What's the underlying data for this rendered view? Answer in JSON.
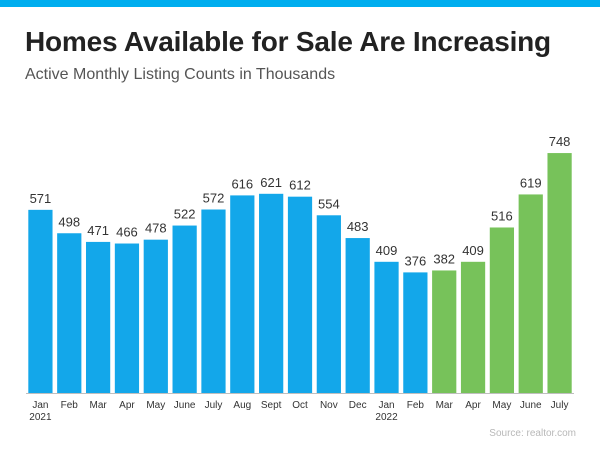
{
  "colors": {
    "accent_bar": "#00aeef",
    "series_2021": "#13a7ea",
    "series_2022": "#77c25a",
    "baseline": "#bfbfbf",
    "label_text": "#333333"
  },
  "header": {
    "title": "Homes Available for Sale Are Increasing",
    "subtitle": "Active Monthly Listing Counts in Thousands"
  },
  "footer": {
    "source": "Source: realtor.com"
  },
  "chart_data": {
    "type": "bar",
    "title": "Homes Available for Sale Are Increasing",
    "subtitle": "Active Monthly Listing Counts in Thousands",
    "xlabel": "",
    "ylabel": "",
    "ylim": [
      0,
      770
    ],
    "grid": false,
    "categories": [
      "Jan",
      "Feb",
      "Mar",
      "Apr",
      "May",
      "June",
      "July",
      "Aug",
      "Sept",
      "Oct",
      "Nov",
      "Dec",
      "Jan",
      "Feb",
      "Mar",
      "Apr",
      "May",
      "June",
      "July"
    ],
    "year_labels": [
      "2021",
      "",
      "",
      "",
      "",
      "",
      "",
      "",
      "",
      "",
      "",
      "",
      "2022",
      "",
      "",
      "",
      "",
      "",
      ""
    ],
    "values": [
      571,
      498,
      471,
      466,
      478,
      522,
      572,
      616,
      621,
      612,
      554,
      483,
      409,
      376,
      382,
      409,
      516,
      619,
      748
    ],
    "color_groups": [
      "blue",
      "blue",
      "blue",
      "blue",
      "blue",
      "blue",
      "blue",
      "blue",
      "blue",
      "blue",
      "blue",
      "blue",
      "blue",
      "blue",
      "green",
      "green",
      "green",
      "green",
      "green"
    ],
    "source": "Source: realtor.com"
  }
}
